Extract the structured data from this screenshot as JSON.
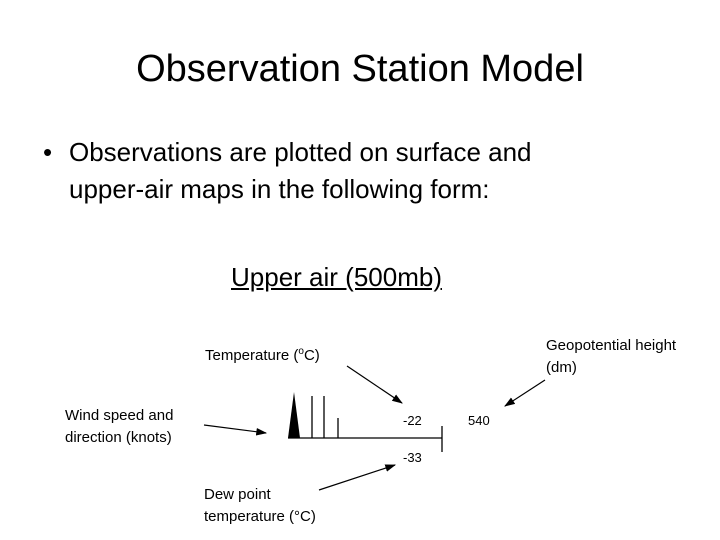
{
  "slide": {
    "title": "Observation Station Model",
    "bullet_symbol": "•",
    "bullet_line1": "Observations are plotted on surface and",
    "bullet_line2": "upper-air maps in the following form:",
    "subtitle": "Upper air (500mb)"
  },
  "labels": {
    "temperature_pre": "Temperature (",
    "temperature_sup": "o",
    "temperature_post": "C)",
    "geopotential_line1": "Geopotential height",
    "geopotential_line2": "(dm)",
    "wind_line1": "Wind speed and",
    "wind_line2": "direction (knots)",
    "dewpoint_line1": "Dew point",
    "dewpoint_line2": "temperature (°C)"
  },
  "values": {
    "temperature": "-22",
    "dewpoint": "-33",
    "height": "540"
  }
}
